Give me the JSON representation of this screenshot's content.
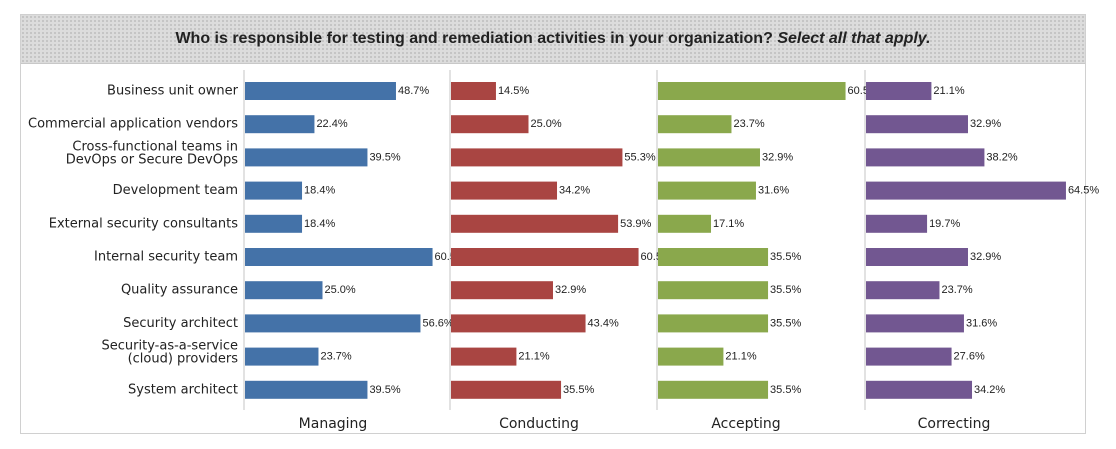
{
  "title": {
    "main": "Who is responsible for testing and remediation activities in your organization?",
    "emphasis": "Select all that apply."
  },
  "chart_data": {
    "type": "bar",
    "orientation": "horizontal",
    "categories": [
      [
        "Business unit owner"
      ],
      [
        "Commercial application vendors"
      ],
      [
        "Cross-functional teams in",
        "DevOps or Secure DevOps"
      ],
      [
        "Development team"
      ],
      [
        "External security consultants"
      ],
      [
        "Internal security team"
      ],
      [
        "Quality assurance"
      ],
      [
        "Security architect"
      ],
      [
        "Security-as-a-service",
        "(cloud) providers"
      ],
      [
        "System architect"
      ]
    ],
    "series": [
      {
        "name": "Managing",
        "color": "#4472a8",
        "values": [
          48.7,
          22.4,
          39.5,
          18.4,
          18.4,
          60.5,
          25.0,
          56.6,
          23.7,
          39.5
        ]
      },
      {
        "name": "Conducting",
        "color": "#a94542",
        "values": [
          14.5,
          25.0,
          55.3,
          34.2,
          53.9,
          60.5,
          32.9,
          43.4,
          21.1,
          35.5
        ]
      },
      {
        "name": "Accepting",
        "color": "#8aa84c",
        "values": [
          60.5,
          23.7,
          32.9,
          31.6,
          17.1,
          35.5,
          35.5,
          35.5,
          21.1,
          35.5
        ]
      },
      {
        "name": "Correcting",
        "color": "#725791",
        "values": [
          21.1,
          32.9,
          38.2,
          64.5,
          19.7,
          32.9,
          23.7,
          31.6,
          27.6,
          34.2
        ]
      }
    ],
    "value_suffix": "%",
    "xlim": [
      0,
      65
    ],
    "grid": false,
    "legend": "bottom"
  }
}
